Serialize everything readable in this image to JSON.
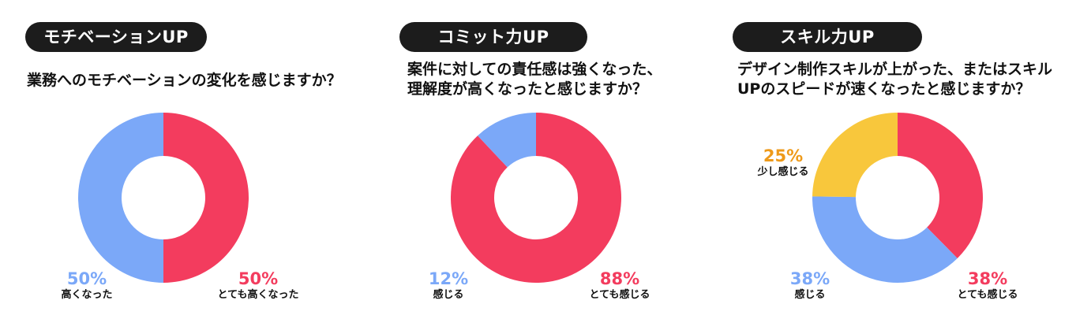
{
  "colors": {
    "red": "#F33C5E",
    "blue": "#7BA8F8",
    "yellow": "#F8C73C",
    "pill_bg": "#1C1C1C"
  },
  "panels": [
    {
      "badge": "モチベーションUP",
      "question_lines": [
        "業務へのモチベーションの変化を感じますか？"
      ],
      "labels": [
        {
          "pct": "50%",
          "cat": "高くなった"
        },
        {
          "pct": "50%",
          "cat": "とても高くなった"
        }
      ]
    },
    {
      "badge": "コミット力UP",
      "question_lines": [
        "案件に対しての責任感は強くなった、",
        "理解度が高くなったと感じますか？"
      ],
      "labels": [
        {
          "pct": "12%",
          "cat": "感じる"
        },
        {
          "pct": "88%",
          "cat": "とても感じる"
        }
      ]
    },
    {
      "badge": "スキル力UP",
      "question_lines": [
        "デザイン制作スキルが上がった、またはスキル",
        "UPのスピードが速くなったと感じますか？"
      ],
      "labels": [
        {
          "pct": "25%",
          "cat": "少し感じる"
        },
        {
          "pct": "38%",
          "cat": "感じる"
        },
        {
          "pct": "38%",
          "cat": "とても感じる"
        }
      ]
    }
  ],
  "chart_data": [
    {
      "type": "pie",
      "title": "業務へのモチベーションの変化を感じますか？",
      "categories": [
        "とても高くなった",
        "高くなった"
      ],
      "values": [
        50,
        50
      ],
      "colors": [
        "#F33C5E",
        "#7BA8F8"
      ]
    },
    {
      "type": "pie",
      "title": "案件に対しての責任感は強くなった、理解度が高くなったと感じますか？",
      "categories": [
        "とても感じる",
        "感じる"
      ],
      "values": [
        88,
        12
      ],
      "colors": [
        "#F33C5E",
        "#7BA8F8"
      ]
    },
    {
      "type": "pie",
      "title": "デザイン制作スキルが上がった、またはスキルUPのスピードが速くなったと感じますか？",
      "categories": [
        "とても感じる",
        "感じる",
        "少し感じる"
      ],
      "values": [
        38,
        38,
        25
      ],
      "colors": [
        "#F33C5E",
        "#7BA8F8",
        "#F8C73C"
      ]
    }
  ]
}
